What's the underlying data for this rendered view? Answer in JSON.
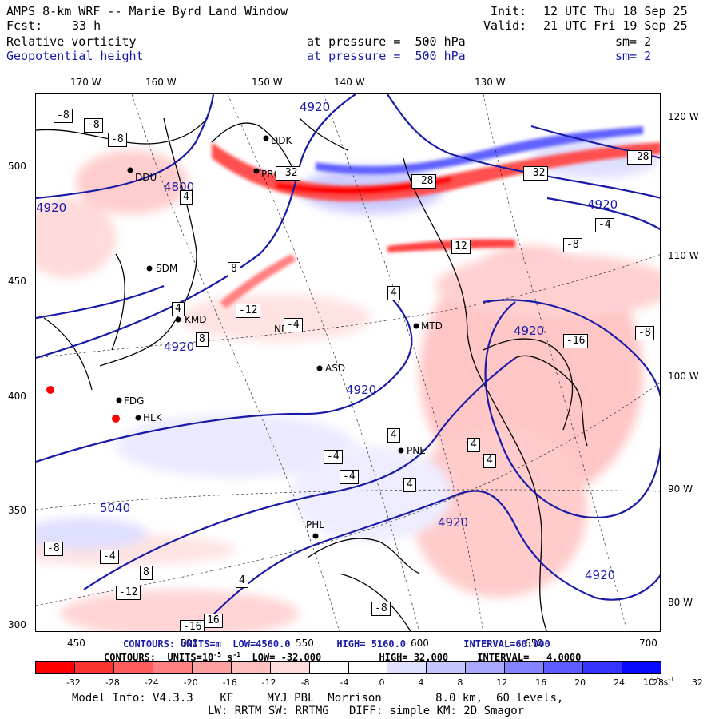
{
  "header": {
    "title": "AMPS 8-km WRF -- Marie Byrd Land Window",
    "forecast_label": "Fcst:",
    "forecast_hours": "33 h",
    "init_label": "Init:",
    "init_time": "12 UTC Thu 18 Sep 25",
    "valid_label": "Valid:",
    "valid_time": "21 UTC Fri 19 Sep 25",
    "field1_name": "Relative vorticity",
    "field1_level": "at pressure =  500 hPa",
    "field1_sm": "sm= 2",
    "field2_name": "Geopotential height",
    "field2_level": "at pressure =  500 hPa",
    "field2_sm": "sm= 2"
  },
  "colors": {
    "height_contour": "#1a1aa8",
    "accent": "#ff0000"
  },
  "map": {
    "top_lon_ticks": [
      "170 W",
      "160 W",
      "150 W",
      "140 W",
      "130 W"
    ],
    "right_lon_ticks": [
      "120 W",
      "110 W",
      "100 W",
      "90 W",
      "80 W"
    ],
    "left_y_ticks": [
      "500",
      "450",
      "400",
      "350",
      "300"
    ],
    "bottom_x_ticks": [
      "450",
      "500",
      "550",
      "600",
      "650",
      "700"
    ],
    "stations": [
      "DDU",
      "DDK",
      "PRO",
      "SDM",
      "KMD",
      "NDX",
      "ASD",
      "MTD",
      "FDG",
      "HLK",
      "PNE",
      "PHL"
    ],
    "height_labels": [
      "4800",
      "4920",
      "4920",
      "4920",
      "4920",
      "4920",
      "4920",
      "4920",
      "5040",
      "4920"
    ],
    "vort_labels": [
      "-8",
      "-8",
      "-8",
      "4",
      "8",
      "-4",
      "-12",
      "12",
      "4",
      "-16",
      "-8",
      "8",
      "-4",
      "4",
      "4",
      "8",
      "-8",
      "-4",
      "4",
      "16",
      "-8",
      "-12",
      "-16",
      "-8",
      "-4",
      "-32",
      "-28",
      "-32",
      "-28",
      "4",
      "4",
      "-4",
      "4"
    ]
  },
  "contour_info": {
    "line1_label": "CONTOURS: UNITS=m  LOW=",
    "line1_low": "4560.0",
    "line1_high_label": "HIGH=",
    "line1_high": "5160.0",
    "line1_int_label": "INTERVAL=",
    "line1_int": "60.000",
    "line2_label": "CONTOURS:  UNITS=10",
    "line2_exp": "-5",
    "line2_unit": "s",
    "line2_unit_exp": "-1",
    "line2_low_label": "LOW=",
    "line2_low": "-32.000",
    "line2_high_label": "HIGH=",
    "line2_high": "32.000",
    "line2_int_label": "INTERVAL=",
    "line2_int": "4.0000"
  },
  "colorbar": {
    "labels": [
      "-32",
      "-28",
      "-24",
      "-20",
      "-16",
      "-12",
      "-8",
      "-4",
      "0",
      "4",
      "8",
      "12",
      "16",
      "20",
      "24",
      "28",
      "32"
    ],
    "units": "10",
    "units_exp": "-5",
    "units_tail": "s",
    "units_tail_exp": "-1",
    "colors": [
      "#ff0000",
      "#ff3232",
      "#ff5c5c",
      "#ff8080",
      "#ffa0a0",
      "#ffc0c0",
      "#ffdcdc",
      "#ffffff",
      "#ffffff",
      "#e0e0ff",
      "#c6c6ff",
      "#a8a8ff",
      "#8484ff",
      "#5c5cff",
      "#3434ff",
      "#0a0aff"
    ]
  },
  "footer": {
    "model_info": "Model Info: V4.3.3    KF     MYJ PBL  Morrison        8.0 km,  60 levels,",
    "physics_info": "LW: RRTM SW: RRTMG   DIFF: simple KM: 2D Smagor"
  }
}
